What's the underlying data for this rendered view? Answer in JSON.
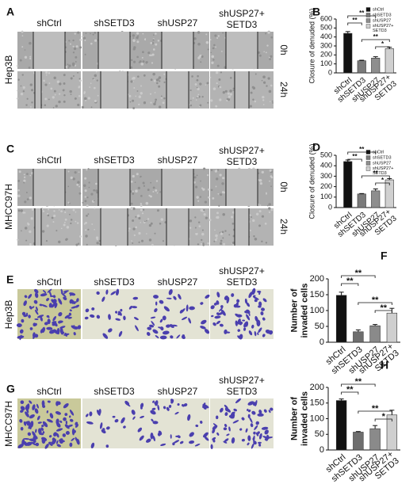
{
  "wound_healing": [
    {
      "letter": "A",
      "cell_line": "Hep3B",
      "columns": [
        "shCtrl",
        "shSETD3",
        "shUSP27",
        "shUSP27+ SETD3"
      ],
      "times": [
        "0h",
        "24h"
      ]
    },
    {
      "letter": "C",
      "cell_line": "MHCC97H",
      "columns": [
        "shCtrl",
        "shSETD3",
        "shUSP27",
        "shUSP27+ SETD3"
      ],
      "times": [
        "0h",
        "24h"
      ]
    }
  ],
  "invasion": [
    {
      "letter": "E",
      "cell_line": "Hep3B",
      "columns": [
        "shCtrl",
        "shSETD3",
        "shUSP27",
        "shUSP27+ SETD3"
      ]
    },
    {
      "letter": "G",
      "cell_line": "MHCC97H",
      "columns": [
        "shCtrl",
        "shSETD3",
        "shUSP27",
        "shUSP27+ SETD3"
      ]
    }
  ],
  "chart_data": [
    {
      "type": "bar",
      "letter": "B",
      "ylabel": "Closure of  denuded (%)",
      "categories": [
        "shCtrl",
        "shSETD3",
        "shUSP27",
        "shUSP27+ SETD3"
      ],
      "values": [
        440,
        135,
        165,
        270
      ],
      "errors": [
        20,
        6,
        15,
        15
      ],
      "colors": [
        "#111111",
        "#7a7a7a",
        "#8e8e8e",
        "#d0d0d0"
      ],
      "ylim": [
        0,
        600
      ],
      "yticks": [
        0,
        100,
        200,
        300,
        400,
        500,
        600
      ],
      "legend": true,
      "annotations": [
        {
          "pair": [
            "shCtrl",
            "shUSP27"
          ],
          "text": "**"
        },
        {
          "pair": [
            "shCtrl",
            "shSETD3"
          ],
          "text": "**"
        },
        {
          "pair": [
            "shSETD3",
            "shUSP27+ SETD3"
          ],
          "text": "**"
        },
        {
          "pair": [
            "shUSP27",
            "shUSP27+ SETD3"
          ],
          "text": "*"
        }
      ]
    },
    {
      "type": "bar",
      "letter": "D",
      "ylabel": "Closure of  denuded (%)",
      "categories": [
        "shCtrl",
        "shSETD3",
        "shUSP27",
        "shUSP27+ SETD3"
      ],
      "values": [
        440,
        130,
        160,
        265
      ],
      "errors": [
        15,
        4,
        18,
        12
      ],
      "colors": [
        "#111111",
        "#7a7a7a",
        "#8e8e8e",
        "#d0d0d0"
      ],
      "ylim": [
        0,
        500
      ],
      "yticks": [
        0,
        100,
        200,
        300,
        400,
        500
      ],
      "legend": true,
      "annotations": [
        {
          "pair": [
            "shCtrl",
            "shUSP27"
          ],
          "text": "**"
        },
        {
          "pair": [
            "shCtrl",
            "shSETD3"
          ],
          "text": "**"
        },
        {
          "pair": [
            "shSETD3",
            "shUSP27+ SETD3"
          ],
          "text": "**"
        },
        {
          "pair": [
            "shUSP27",
            "shUSP27+ SETD3"
          ],
          "text": "*"
        }
      ]
    },
    {
      "type": "bar",
      "letter": "F",
      "ylabel": "Number of invaded cells",
      "categories": [
        "shCtrl",
        "shSETD3",
        "shUSP27",
        "shUSP27+ SETD3"
      ],
      "values": [
        148,
        33,
        52,
        92
      ],
      "errors": [
        10,
        6,
        4,
        15
      ],
      "colors": [
        "#111111",
        "#6e6e6e",
        "#8a8a8a",
        "#cfcfcf"
      ],
      "ylim": [
        0,
        200
      ],
      "yticks": [
        0,
        50,
        100,
        150,
        200
      ],
      "legend": false,
      "annotations": [
        {
          "pair": [
            "shCtrl",
            "shUSP27"
          ],
          "text": "**"
        },
        {
          "pair": [
            "shCtrl",
            "shSETD3"
          ],
          "text": "**"
        },
        {
          "pair": [
            "shSETD3",
            "shUSP27+ SETD3"
          ],
          "text": "**"
        },
        {
          "pair": [
            "shUSP27",
            "shUSP27+ SETD3"
          ],
          "text": "**"
        }
      ]
    },
    {
      "type": "bar",
      "letter": "H",
      "ylabel": "Number of invaded cells",
      "categories": [
        "shCtrl",
        "shSETD3",
        "shUSP27",
        "shUSP27+ SETD3"
      ],
      "values": [
        158,
        57,
        68,
        112
      ],
      "errors": [
        5,
        2,
        10,
        15
      ],
      "colors": [
        "#111111",
        "#6e6e6e",
        "#8a8a8a",
        "#cfcfcf"
      ],
      "ylim": [
        0,
        200
      ],
      "yticks": [
        0,
        50,
        100,
        150,
        200
      ],
      "legend": false,
      "annotations": [
        {
          "pair": [
            "shCtrl",
            "shUSP27"
          ],
          "text": "**"
        },
        {
          "pair": [
            "shCtrl",
            "shSETD3"
          ],
          "text": "**"
        },
        {
          "pair": [
            "shSETD3",
            "shUSP27+ SETD3"
          ],
          "text": "**"
        },
        {
          "pair": [
            "shUSP27",
            "shUSP27+ SETD3"
          ],
          "text": "*"
        }
      ]
    }
  ]
}
